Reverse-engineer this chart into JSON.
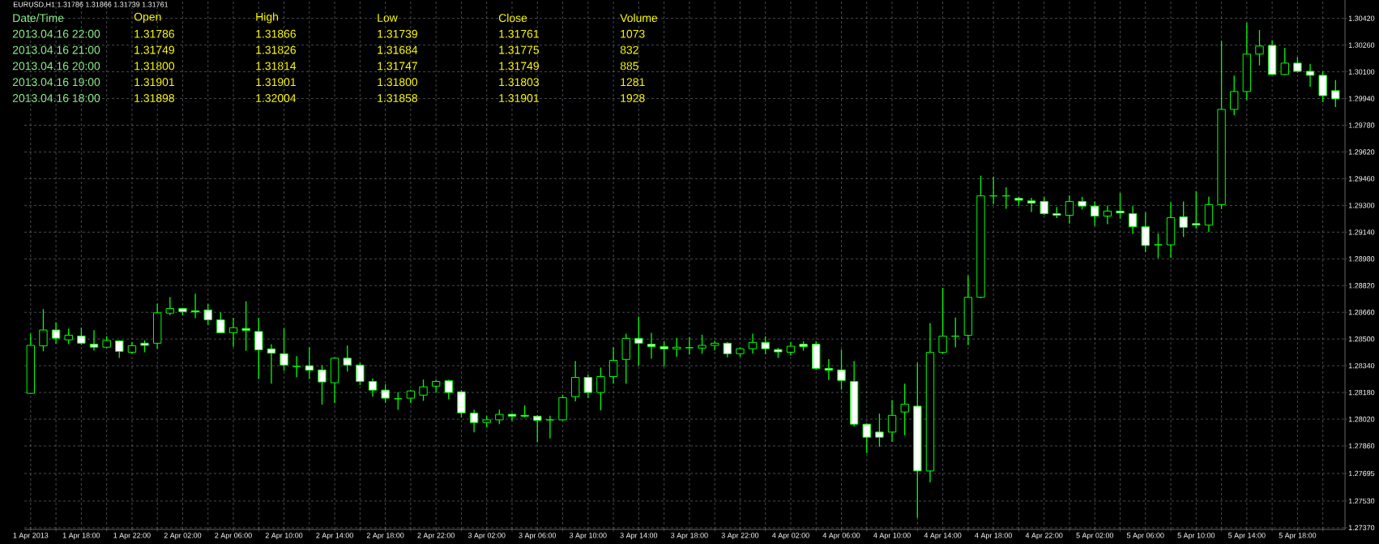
{
  "chart_data": {
    "type": "candlestick",
    "title": "EURUSD,H1  1.31786 1.31866 1.31739 1.31761",
    "annotations": [
      "Date/Time",
      "Open",
      "High",
      "Low",
      "Close",
      "Volume",
      "2013.04.16 22:00",
      "1.31786",
      "1.31866",
      "1.31739",
      "1.31761",
      "1073",
      "2013.04.16 21:00",
      "1.31749",
      "1.31826",
      "1.31684",
      "1.31775",
      "832",
      "2013.04.16 20:00",
      "1.31800",
      "1.31814",
      "1.31747",
      "1.31749",
      "885",
      "2013.04.16 19:00",
      "1.31901",
      "1.31901",
      "1.31800",
      "1.31803",
      "1281",
      "2013.04.16 18:00",
      "1.31898",
      "1.32004",
      "1.31858",
      "1.31901",
      "1928"
    ],
    "color": "#00ff00",
    "grid": true,
    "xlim": [
      "2013-04-01T13:30",
      "2013-04-05T21:45"
    ],
    "ylim": [
      1.2736,
      1.3053
    ],
    "xticks": [
      {
        "value": "2013-04-01T14:00",
        "label": "1 Apr 2013"
      },
      {
        "value": "2013-04-01T16:00",
        "label": null
      },
      {
        "value": "2013-04-01T18:00",
        "label": "1 Apr 18:00"
      },
      {
        "value": "2013-04-01T20:00",
        "label": null
      },
      {
        "value": "2013-04-01T22:00",
        "label": "1 Apr 22:00"
      },
      {
        "value": "2013-04-02T00:00",
        "label": null
      },
      {
        "value": "2013-04-02T02:00",
        "label": "2 Apr 02:00"
      },
      {
        "value": "2013-04-02T04:00",
        "label": null
      },
      {
        "value": "2013-04-02T06:00",
        "label": "2 Apr 06:00"
      },
      {
        "value": "2013-04-02T08:00",
        "label": null
      },
      {
        "value": "2013-04-02T10:00",
        "label": "2 Apr 10:00"
      },
      {
        "value": "2013-04-02T12:00",
        "label": null
      },
      {
        "value": "2013-04-02T14:00",
        "label": "2 Apr 14:00"
      },
      {
        "value": "2013-04-02T16:00",
        "label": null
      },
      {
        "value": "2013-04-02T18:00",
        "label": "2 Apr 18:00"
      },
      {
        "value": "2013-04-02T20:00",
        "label": null
      },
      {
        "value": "2013-04-02T22:00",
        "label": "2 Apr 22:00"
      },
      {
        "value": "2013-04-03T00:00",
        "label": null
      },
      {
        "value": "2013-04-03T02:00",
        "label": "3 Apr 02:00"
      },
      {
        "value": "2013-04-03T04:00",
        "label": null
      },
      {
        "value": "2013-04-03T06:00",
        "label": "3 Apr 06:00"
      },
      {
        "value": "2013-04-03T08:00",
        "label": null
      },
      {
        "value": "2013-04-03T10:00",
        "label": "3 Apr 10:00"
      },
      {
        "value": "2013-04-03T12:00",
        "label": null
      },
      {
        "value": "2013-04-03T14:00",
        "label": "3 Apr 14:00"
      },
      {
        "value": "2013-04-03T16:00",
        "label": null
      },
      {
        "value": "2013-04-03T18:00",
        "label": "3 Apr 18:00"
      },
      {
        "value": "2013-04-03T20:00",
        "label": null
      },
      {
        "value": "2013-04-03T22:00",
        "label": "3 Apr 22:00"
      },
      {
        "value": "2013-04-04T00:00",
        "label": null
      },
      {
        "value": "2013-04-04T02:00",
        "label": "4 Apr 02:00"
      },
      {
        "value": "2013-04-04T04:00",
        "label": null
      },
      {
        "value": "2013-04-04T06:00",
        "label": "4 Apr 06:00"
      },
      {
        "value": "2013-04-04T08:00",
        "label": null
      },
      {
        "value": "2013-04-04T10:00",
        "label": "4 Apr 10:00"
      },
      {
        "value": "2013-04-04T12:00",
        "label": null
      },
      {
        "value": "2013-04-04T14:00",
        "label": "4 Apr 14:00"
      },
      {
        "value": "2013-04-04T16:00",
        "label": null
      },
      {
        "value": "2013-04-04T18:00",
        "label": "4 Apr 18:00"
      },
      {
        "value": "2013-04-04T20:00",
        "label": null
      },
      {
        "value": "2013-04-04T22:00",
        "label": "4 Apr 22:00"
      },
      {
        "value": "2013-04-05T00:00",
        "label": null
      },
      {
        "value": "2013-04-05T02:00",
        "label": "5 Apr 02:00"
      },
      {
        "value": "2013-04-05T04:00",
        "label": null
      },
      {
        "value": "2013-04-05T06:00",
        "label": "5 Apr 06:00"
      },
      {
        "value": "2013-04-05T08:00",
        "label": null
      },
      {
        "value": "2013-04-05T10:00",
        "label": "5 Apr 10:00"
      },
      {
        "value": "2013-04-05T12:00",
        "label": null
      },
      {
        "value": "2013-04-05T14:00",
        "label": "5 Apr 14:00"
      },
      {
        "value": "2013-04-05T16:00",
        "label": null
      },
      {
        "value": "2013-04-05T18:00",
        "label": "5 Apr 18:00"
      },
      {
        "value": "2013-04-05T20:00",
        "label": null
      }
    ],
    "yticks": [
      {
        "value": 1.2737,
        "label": "1.27370"
      },
      {
        "value": 1.2753,
        "label": "1.27530"
      },
      {
        "value": 1.27695,
        "label": "1.27695"
      },
      {
        "value": 1.2786,
        "label": "1.27860"
      },
      {
        "value": 1.2802,
        "label": "1.28020"
      },
      {
        "value": 1.2818,
        "label": "1.28180"
      },
      {
        "value": 1.2834,
        "label": "1.28340"
      },
      {
        "value": 1.285,
        "label": "1.28500"
      },
      {
        "value": 1.2866,
        "label": "1.28660"
      },
      {
        "value": 1.2882,
        "label": "1.28820"
      },
      {
        "value": 1.2898,
        "label": "1.28980"
      },
      {
        "value": 1.2914,
        "label": "1.29140"
      },
      {
        "value": 1.293,
        "label": "1.29300"
      },
      {
        "value": 1.2946,
        "label": "1.29460"
      },
      {
        "value": 1.2962,
        "label": "1.29620"
      },
      {
        "value": 1.2978,
        "label": "1.29780"
      },
      {
        "value": 1.2994,
        "label": "1.29940"
      },
      {
        "value": 1.301,
        "label": "1.30100"
      },
      {
        "value": 1.3026,
        "label": "1.30260"
      },
      {
        "value": 1.3042,
        "label": "1.30420"
      }
    ],
    "x": [
      "2013-04-01T14:00",
      "2013-04-01T15:00",
      "2013-04-01T16:00",
      "2013-04-01T17:00",
      "2013-04-01T18:00",
      "2013-04-01T19:00",
      "2013-04-01T20:00",
      "2013-04-01T21:00",
      "2013-04-01T22:00",
      "2013-04-01T23:00",
      "2013-04-02T00:00",
      "2013-04-02T01:00",
      "2013-04-02T02:00",
      "2013-04-02T03:00",
      "2013-04-02T04:00",
      "2013-04-02T05:00",
      "2013-04-02T06:00",
      "2013-04-02T07:00",
      "2013-04-02T08:00",
      "2013-04-02T09:00",
      "2013-04-02T10:00",
      "2013-04-02T11:00",
      "2013-04-02T12:00",
      "2013-04-02T13:00",
      "2013-04-02T14:00",
      "2013-04-02T15:00",
      "2013-04-02T16:00",
      "2013-04-02T17:00",
      "2013-04-02T18:00",
      "2013-04-02T19:00",
      "2013-04-02T20:00",
      "2013-04-02T21:00",
      "2013-04-02T22:00",
      "2013-04-02T23:00",
      "2013-04-03T00:00",
      "2013-04-03T01:00",
      "2013-04-03T02:00",
      "2013-04-03T03:00",
      "2013-04-03T04:00",
      "2013-04-03T05:00",
      "2013-04-03T06:00",
      "2013-04-03T07:00",
      "2013-04-03T08:00",
      "2013-04-03T09:00",
      "2013-04-03T10:00",
      "2013-04-03T11:00",
      "2013-04-03T12:00",
      "2013-04-03T13:00",
      "2013-04-03T14:00",
      "2013-04-03T15:00",
      "2013-04-03T16:00",
      "2013-04-03T17:00",
      "2013-04-03T18:00",
      "2013-04-03T19:00",
      "2013-04-03T20:00",
      "2013-04-03T21:00",
      "2013-04-03T22:00",
      "2013-04-03T23:00",
      "2013-04-04T00:00",
      "2013-04-04T01:00",
      "2013-04-04T02:00",
      "2013-04-04T03:00",
      "2013-04-04T04:00",
      "2013-04-04T05:00",
      "2013-04-04T06:00",
      "2013-04-04T07:00",
      "2013-04-04T08:00",
      "2013-04-04T09:00",
      "2013-04-04T10:00",
      "2013-04-04T11:00",
      "2013-04-04T12:00",
      "2013-04-04T13:00",
      "2013-04-04T14:00",
      "2013-04-04T15:00",
      "2013-04-04T16:00",
      "2013-04-04T17:00",
      "2013-04-04T18:00",
      "2013-04-04T19:00",
      "2013-04-04T20:00",
      "2013-04-04T21:00",
      "2013-04-04T22:00",
      "2013-04-04T23:00",
      "2013-04-05T00:00",
      "2013-04-05T01:00",
      "2013-04-05T02:00",
      "2013-04-05T03:00",
      "2013-04-05T04:00",
      "2013-04-05T05:00",
      "2013-04-05T06:00",
      "2013-04-05T07:00",
      "2013-04-05T08:00",
      "2013-04-05T09:00",
      "2013-04-05T10:00",
      "2013-04-05T11:00",
      "2013-04-05T12:00",
      "2013-04-05T13:00",
      "2013-04-05T14:00",
      "2013-04-05T15:00",
      "2013-04-05T16:00",
      "2013-04-05T17:00",
      "2013-04-05T18:00",
      "2013-04-05T19:00",
      "2013-04-05T20:00",
      "2013-04-05T21:00"
    ],
    "ohlc": [
      [
        1.28175,
        1.28529,
        1.28175,
        1.28462
      ],
      [
        1.28459,
        1.28676,
        1.2843,
        1.28554
      ],
      [
        1.28554,
        1.28597,
        1.28475,
        1.28505
      ],
      [
        1.28495,
        1.28559,
        1.28473,
        1.28523
      ],
      [
        1.28518,
        1.28565,
        1.28469,
        1.28475
      ],
      [
        1.28469,
        1.2855,
        1.28433,
        1.28451
      ],
      [
        1.28451,
        1.28513,
        1.28448,
        1.28491
      ],
      [
        1.28489,
        1.28489,
        1.2839,
        1.28426
      ],
      [
        1.28421,
        1.2848,
        1.28417,
        1.2846
      ],
      [
        1.28475,
        1.28489,
        1.28424,
        1.28462
      ],
      [
        1.28475,
        1.28709,
        1.28444,
        1.28657
      ],
      [
        1.28655,
        1.28748,
        1.28646,
        1.28683
      ],
      [
        1.28683,
        1.28683,
        1.28646,
        1.28664
      ],
      [
        1.28669,
        1.28768,
        1.28628,
        1.28662
      ],
      [
        1.28674,
        1.28707,
        1.28586,
        1.28615
      ],
      [
        1.28615,
        1.28656,
        1.28538,
        1.28538
      ],
      [
        1.28538,
        1.28624,
        1.28457,
        1.28568
      ],
      [
        1.28563,
        1.28723,
        1.28433,
        1.28552
      ],
      [
        1.28545,
        1.28624,
        1.28264,
        1.28435
      ],
      [
        1.28441,
        1.28466,
        1.28236,
        1.28415
      ],
      [
        1.28412,
        1.28561,
        1.28313,
        1.28344
      ],
      [
        1.28336,
        1.28394,
        1.28274,
        1.28336
      ],
      [
        1.2834,
        1.28448,
        1.28264,
        1.28313
      ],
      [
        1.28315,
        1.2834,
        1.2811,
        1.28243
      ],
      [
        1.28238,
        1.28388,
        1.28121,
        1.28385
      ],
      [
        1.28385,
        1.28457,
        1.28309,
        1.28344
      ],
      [
        1.28344,
        1.28355,
        1.28227,
        1.28246
      ],
      [
        1.28246,
        1.28261,
        1.28158,
        1.28194
      ],
      [
        1.28194,
        1.28225,
        1.28121,
        1.28146
      ],
      [
        1.28142,
        1.28178,
        1.28079,
        1.28142
      ],
      [
        1.28146,
        1.28193,
        1.28121,
        1.28189
      ],
      [
        1.28164,
        1.28254,
        1.28133,
        1.28214
      ],
      [
        1.28218,
        1.28254,
        1.28182,
        1.28246
      ],
      [
        1.2825,
        1.28254,
        1.28142,
        1.2818
      ],
      [
        1.28184,
        1.28191,
        1.28034,
        1.28058
      ],
      [
        1.28056,
        1.28074,
        1.27944,
        1.28
      ],
      [
        1.28,
        1.28038,
        1.27975,
        1.28016
      ],
      [
        1.28016,
        1.28074,
        1.27993,
        1.28049
      ],
      [
        1.28049,
        1.28052,
        1.28013,
        1.28038
      ],
      [
        1.28043,
        1.28099,
        1.28034,
        1.28038
      ],
      [
        1.28038,
        1.28041,
        1.27885,
        1.28013
      ],
      [
        1.28016,
        1.28038,
        1.27908,
        1.28016
      ],
      [
        1.28016,
        1.28164,
        1.28013,
        1.28149
      ],
      [
        1.28155,
        1.28365,
        1.2813,
        1.2827
      ],
      [
        1.2827,
        1.28284,
        1.28149,
        1.2818
      ],
      [
        1.2818,
        1.28326,
        1.28076,
        1.28275
      ],
      [
        1.28275,
        1.28448,
        1.28236,
        1.28372
      ],
      [
        1.28378,
        1.28529,
        1.28236,
        1.28504
      ],
      [
        1.28504,
        1.28631,
        1.28344,
        1.28475
      ],
      [
        1.28469,
        1.28534,
        1.28385,
        1.28455
      ],
      [
        1.28455,
        1.28484,
        1.2834,
        1.28441
      ],
      [
        1.28441,
        1.28504,
        1.28397,
        1.28451
      ],
      [
        1.28448,
        1.28509,
        1.2841,
        1.28448
      ],
      [
        1.28446,
        1.28523,
        1.28415,
        1.28462
      ],
      [
        1.28462,
        1.28487,
        1.28435,
        1.28475
      ],
      [
        1.28475,
        1.28478,
        1.28394,
        1.28412
      ],
      [
        1.28412,
        1.28446,
        1.28397,
        1.28442
      ],
      [
        1.28442,
        1.28529,
        1.28415,
        1.2848
      ],
      [
        1.2848,
        1.28513,
        1.28412,
        1.28442
      ],
      [
        1.28437,
        1.28444,
        1.2839,
        1.28423
      ],
      [
        1.28421,
        1.2848,
        1.28403,
        1.28457
      ],
      [
        1.28469,
        1.28484,
        1.28433,
        1.28455
      ],
      [
        1.28469,
        1.28484,
        1.2832,
        1.28324
      ],
      [
        1.28324,
        1.28376,
        1.28257,
        1.28313
      ],
      [
        1.28315,
        1.28433,
        1.282,
        1.28252
      ],
      [
        1.28246,
        1.28365,
        1.2798,
        1.2799
      ],
      [
        1.2799,
        1.27993,
        1.27819,
        1.27912
      ],
      [
        1.27943,
        1.2805,
        1.27858,
        1.27912
      ],
      [
        1.27943,
        1.28131,
        1.27887,
        1.28043
      ],
      [
        1.28063,
        1.28229,
        1.27926,
        1.2811
      ],
      [
        1.28098,
        1.28354,
        1.27434,
        1.2771
      ],
      [
        1.2771,
        1.28592,
        1.27645,
        1.2842
      ],
      [
        1.2842,
        1.28803,
        1.28416,
        1.28517
      ],
      [
        1.28517,
        1.28625,
        1.28453,
        1.28517
      ],
      [
        1.28522,
        1.28877,
        1.28466,
        1.2875
      ],
      [
        1.2875,
        1.29475,
        1.28747,
        1.29357
      ],
      [
        1.29357,
        1.29469,
        1.29311,
        1.29357
      ],
      [
        1.29357,
        1.29406,
        1.29283,
        1.29357
      ],
      [
        1.29342,
        1.29348,
        1.29301,
        1.29331
      ],
      [
        1.29327,
        1.29342,
        1.29264,
        1.29314
      ],
      [
        1.29324,
        1.29348,
        1.29247,
        1.29251
      ],
      [
        1.29251,
        1.29288,
        1.29227,
        1.29241
      ],
      [
        1.29241,
        1.29357,
        1.29195,
        1.29324
      ],
      [
        1.29324,
        1.29348,
        1.29279,
        1.29296
      ],
      [
        1.29296,
        1.2932,
        1.2918,
        1.29236
      ],
      [
        1.29236,
        1.29296,
        1.29191,
        1.29266
      ],
      [
        1.29266,
        1.29372,
        1.29223,
        1.29255
      ],
      [
        1.29251,
        1.29292,
        1.29133,
        1.29172
      ],
      [
        1.29172,
        1.29255,
        1.29023,
        1.2906
      ],
      [
        1.29064,
        1.29129,
        1.28988,
        1.29064
      ],
      [
        1.29064,
        1.29316,
        1.28988,
        1.29227
      ],
      [
        1.29232,
        1.2932,
        1.29115,
        1.29169
      ],
      [
        1.29191,
        1.29382,
        1.29163,
        1.29182
      ],
      [
        1.29182,
        1.2935,
        1.29144,
        1.29305
      ],
      [
        1.29305,
        1.30282,
        1.29281,
        1.29875
      ],
      [
        1.29875,
        1.30074,
        1.29844,
        1.29982
      ],
      [
        1.29982,
        1.30391,
        1.29933,
        1.30206
      ],
      [
        1.30206,
        1.30347,
        1.30141,
        1.30254
      ],
      [
        1.30258,
        1.30285,
        1.30084,
        1.30084
      ],
      [
        1.30084,
        1.30241,
        1.30084,
        1.30152
      ],
      [
        1.30152,
        1.30185,
        1.30098,
        1.30103
      ],
      [
        1.30103,
        1.30144,
        1.30014,
        1.30079
      ],
      [
        1.30079,
        1.301,
        1.29921,
        1.29957
      ],
      [
        1.29987,
        1.30047,
        1.29892,
        1.29938
      ]
    ]
  }
}
